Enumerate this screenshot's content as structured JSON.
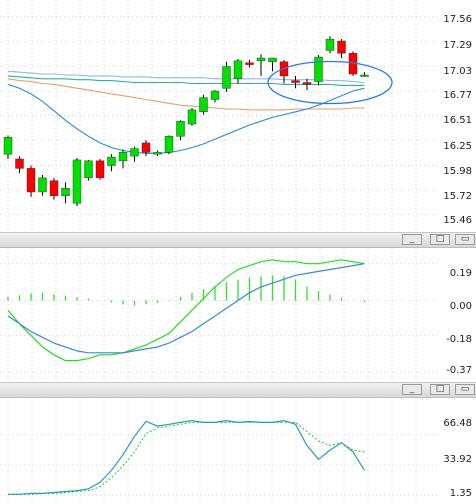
{
  "panes": {
    "price": {
      "ticks": [
        "17.56",
        "17.29",
        "17.03",
        "16.77",
        "16.51",
        "16.25",
        "15.98",
        "15.72",
        "15.46"
      ],
      "tick_values": [
        17.56,
        17.29,
        17.03,
        16.77,
        16.51,
        16.25,
        15.98,
        15.72,
        15.46
      ]
    },
    "macd": {
      "ticks": [
        "0.19",
        "0.00",
        "-0.18",
        "-0.37"
      ],
      "tick_values": [
        0.19,
        0.0,
        -0.18,
        -0.37
      ]
    },
    "stoch": {
      "ticks": [
        "66.48",
        "33.92",
        "1.35"
      ],
      "tick_values": [
        66.48,
        33.92,
        1.35
      ]
    }
  },
  "window_buttons": {
    "minimize": "_",
    "restore": "□",
    "maximize": "▭"
  },
  "colors": {
    "up": "#00e000",
    "down": "#ff0000",
    "wick": "#000000",
    "grid": "#c8c8c8",
    "ma_blue": "#2a8ad8",
    "ma_teal": "#30b0a0",
    "ma_orange": "#e0a070",
    "ma_light": "#90b8e0",
    "macd_hist": "#33dd33",
    "macd_line": "#22dd22",
    "signal_line": "#3a8ad0",
    "stoch_k": "#2a9ab8",
    "stoch_d": "#22cc22",
    "ellipse": "#2a7ae0"
  },
  "chart_data": [
    {
      "type": "candlestick",
      "ylim": [
        15.35,
        17.65
      ],
      "candles": [
        {
          "o": 16.1,
          "h": 16.3,
          "l": 16.05,
          "c": 16.28
        },
        {
          "o": 16.05,
          "h": 16.08,
          "l": 15.9,
          "c": 15.95
        },
        {
          "o": 15.95,
          "h": 15.98,
          "l": 15.65,
          "c": 15.7
        },
        {
          "o": 15.7,
          "h": 15.88,
          "l": 15.66,
          "c": 15.85
        },
        {
          "o": 15.82,
          "h": 15.85,
          "l": 15.62,
          "c": 15.66
        },
        {
          "o": 15.66,
          "h": 15.8,
          "l": 15.58,
          "c": 15.74
        },
        {
          "o": 15.58,
          "h": 16.06,
          "l": 15.55,
          "c": 16.04
        },
        {
          "o": 15.85,
          "h": 16.04,
          "l": 15.82,
          "c": 16.03
        },
        {
          "o": 16.03,
          "h": 16.05,
          "l": 15.83,
          "c": 15.85
        },
        {
          "o": 15.98,
          "h": 16.1,
          "l": 15.92,
          "c": 16.07
        },
        {
          "o": 16.03,
          "h": 16.15,
          "l": 15.95,
          "c": 16.12
        },
        {
          "o": 16.08,
          "h": 16.18,
          "l": 16.02,
          "c": 16.16
        },
        {
          "o": 16.22,
          "h": 16.25,
          "l": 16.08,
          "c": 16.12
        },
        {
          "o": 16.1,
          "h": 16.14,
          "l": 16.08,
          "c": 16.12
        },
        {
          "o": 16.12,
          "h": 16.3,
          "l": 16.1,
          "c": 16.29
        },
        {
          "o": 16.29,
          "h": 16.46,
          "l": 16.25,
          "c": 16.45
        },
        {
          "o": 16.42,
          "h": 16.59,
          "l": 16.4,
          "c": 16.57
        },
        {
          "o": 16.55,
          "h": 16.73,
          "l": 16.52,
          "c": 16.7
        },
        {
          "o": 16.68,
          "h": 16.78,
          "l": 16.65,
          "c": 16.77
        },
        {
          "o": 16.8,
          "h": 17.08,
          "l": 16.76,
          "c": 17.03
        },
        {
          "o": 16.9,
          "h": 17.11,
          "l": 16.85,
          "c": 17.09
        },
        {
          "o": 17.07,
          "h": 17.1,
          "l": 17.02,
          "c": 17.05
        },
        {
          "o": 17.09,
          "h": 17.16,
          "l": 16.93,
          "c": 17.12
        },
        {
          "o": 17.08,
          "h": 17.12,
          "l": 16.98,
          "c": 17.12
        },
        {
          "o": 17.08,
          "h": 17.1,
          "l": 16.85,
          "c": 16.93
        },
        {
          "o": 16.88,
          "h": 16.93,
          "l": 16.8,
          "c": 16.86
        },
        {
          "o": 16.86,
          "h": 16.9,
          "l": 16.78,
          "c": 16.84
        },
        {
          "o": 16.87,
          "h": 17.15,
          "l": 16.83,
          "c": 17.13
        },
        {
          "o": 17.2,
          "h": 17.35,
          "l": 17.17,
          "c": 17.32
        },
        {
          "o": 17.3,
          "h": 17.32,
          "l": 17.12,
          "c": 17.17
        },
        {
          "o": 17.17,
          "h": 17.19,
          "l": 16.93,
          "c": 16.95
        },
        {
          "o": 16.93,
          "h": 16.97,
          "l": 16.92,
          "c": 16.94
        }
      ],
      "ma_series": [
        {
          "color": "ma_light",
          "values": [
            16.98,
            16.97,
            16.96,
            16.95,
            16.95,
            16.94,
            16.94,
            16.93,
            16.93,
            16.93,
            16.92,
            16.92,
            16.92,
            16.91,
            16.91,
            16.91,
            16.91,
            16.91,
            16.9,
            16.9,
            16.9,
            16.9,
            16.9,
            16.9,
            16.89,
            16.89,
            16.89,
            16.89,
            16.88,
            16.88,
            16.87,
            16.86
          ]
        },
        {
          "color": "ma_teal",
          "values": [
            16.93,
            16.92,
            16.91,
            16.9,
            16.9,
            16.9,
            16.89,
            16.89,
            16.88,
            16.88,
            16.87,
            16.86,
            16.86,
            16.86,
            16.86,
            16.86,
            16.85,
            16.85,
            16.85,
            16.85,
            16.85,
            16.85,
            16.85,
            16.85,
            16.84,
            16.84,
            16.84,
            16.84,
            16.84,
            16.83,
            16.83,
            16.83
          ]
        },
        {
          "color": "ma_orange",
          "values": [
            16.9,
            16.88,
            16.87,
            16.85,
            16.84,
            16.82,
            16.8,
            16.78,
            16.76,
            16.74,
            16.72,
            16.7,
            16.68,
            16.66,
            16.64,
            16.62,
            16.61,
            16.6,
            16.59,
            16.58,
            16.58,
            16.57,
            16.57,
            16.57,
            16.57,
            16.58,
            16.58,
            16.58,
            16.58,
            16.58,
            16.59,
            16.59
          ]
        },
        {
          "color": "ma_blue",
          "values": [
            16.84,
            16.8,
            16.74,
            16.66,
            16.56,
            16.46,
            16.37,
            16.29,
            16.22,
            16.17,
            16.14,
            16.12,
            16.11,
            16.11,
            16.12,
            16.14,
            16.17,
            16.21,
            16.26,
            16.31,
            16.36,
            16.41,
            16.45,
            16.49,
            16.52,
            16.55,
            16.58,
            16.62,
            16.67,
            16.72,
            16.77,
            16.8
          ]
        }
      ]
    },
    {
      "type": "bar+line",
      "ylim": [
        -0.4,
        0.24
      ],
      "histogram": [
        0.018,
        0.027,
        0.037,
        0.04,
        0.033,
        0.025,
        0.018,
        0.01,
        0.0,
        -0.01,
        -0.02,
        -0.025,
        -0.02,
        -0.012,
        -0.003,
        0.02,
        0.04,
        0.058,
        0.075,
        0.095,
        0.107,
        0.118,
        0.125,
        0.13,
        0.125,
        0.108,
        0.072,
        0.048,
        0.03,
        0.014,
        0.0,
        -0.008
      ],
      "series": [
        {
          "color": "macd_line",
          "values": [
            -0.05,
            -0.12,
            -0.18,
            -0.24,
            -0.28,
            -0.31,
            -0.31,
            -0.3,
            -0.28,
            -0.28,
            -0.27,
            -0.25,
            -0.23,
            -0.2,
            -0.17,
            -0.11,
            -0.05,
            0.01,
            0.07,
            0.12,
            0.16,
            0.18,
            0.2,
            0.21,
            0.2,
            0.2,
            0.19,
            0.19,
            0.2,
            0.21,
            0.2,
            0.19
          ]
        },
        {
          "color": "signal_line",
          "values": [
            -0.08,
            -0.12,
            -0.16,
            -0.19,
            -0.22,
            -0.24,
            -0.26,
            -0.27,
            -0.27,
            -0.27,
            -0.27,
            -0.26,
            -0.25,
            -0.24,
            -0.22,
            -0.19,
            -0.16,
            -0.12,
            -0.08,
            -0.04,
            0.0,
            0.04,
            0.07,
            0.09,
            0.11,
            0.13,
            0.14,
            0.15,
            0.16,
            0.17,
            0.18,
            0.19
          ]
        }
      ]
    },
    {
      "type": "line",
      "ylim": [
        -2,
        100
      ],
      "series": [
        {
          "color": "stoch_k",
          "values": [
            2,
            2,
            3,
            3,
            4,
            5,
            6,
            8,
            15,
            28,
            45,
            65,
            81,
            76,
            78,
            80,
            82,
            80,
            80,
            82,
            80,
            81,
            80,
            80,
            82,
            78,
            55,
            40,
            50,
            58,
            48,
            28
          ]
        },
        {
          "color": "stoch_d",
          "values": [
            2,
            2,
            2,
            3,
            3,
            4,
            5,
            6,
            10,
            20,
            33,
            48,
            68,
            74,
            76,
            78,
            80,
            80,
            80,
            80,
            80,
            80,
            80,
            80,
            80,
            80,
            70,
            60,
            55,
            58,
            50,
            48
          ]
        }
      ]
    }
  ]
}
